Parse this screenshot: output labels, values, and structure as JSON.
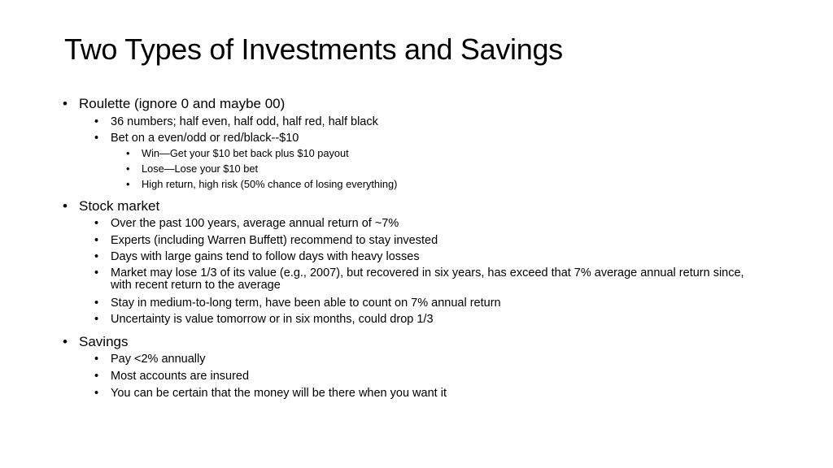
{
  "slide": {
    "title": "Two Types of Investments and Savings",
    "bullet": "•",
    "sections": [
      {
        "label": "Roulette (ignore 0 and maybe 00)",
        "items": [
          {
            "label": "36 numbers; half even, half odd, half red, half black"
          },
          {
            "label": "Bet on a even/odd or red/black--$10",
            "items": [
              {
                "label": "Win—Get your $10 bet back plus $10 payout"
              },
              {
                "label": "Lose—Lose your $10 bet"
              },
              {
                "label": "High return, high risk (50% chance of losing everything)"
              }
            ]
          }
        ]
      },
      {
        "label": "Stock market",
        "items": [
          {
            "label": "Over the past 100 years, average annual return of ~7%"
          },
          {
            "label": "Experts (including Warren Buffett) recommend to stay invested"
          },
          {
            "label": "Days with large gains tend to follow days with heavy losses"
          },
          {
            "label": "Market may lose 1/3 of its value (e.g., 2007), but recovered in six years, has exceed that 7% average annual return since, with recent return to the average"
          },
          {
            "label": "Stay in medium-to-long term, have been able to count on 7% annual return"
          },
          {
            "label": "Uncertainty is value tomorrow or in six months, could drop 1/3"
          }
        ]
      },
      {
        "label": "Savings",
        "items": [
          {
            "label": "Pay <2% annually"
          },
          {
            "label": "Most accounts are insured"
          },
          {
            "label": "You can be certain that the money will be there when you want it"
          }
        ]
      }
    ]
  }
}
